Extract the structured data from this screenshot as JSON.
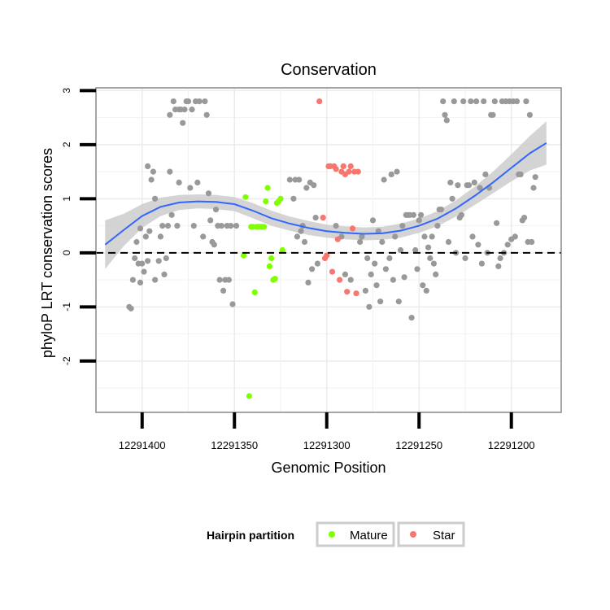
{
  "chart_data": {
    "type": "scatter",
    "title": "Conservation",
    "xlabel": "Genomic Position",
    "ylabel": "phyloP LRT conservation scores",
    "x_reversed": true,
    "xlim": [
      12291425,
      12291173
    ],
    "ylim": [
      -2.95,
      3.05
    ],
    "xticks": [
      12291400,
      12291350,
      12291300,
      12291250,
      12291200
    ],
    "xtick_labels": [
      "12291400",
      "12291350",
      "12291300",
      "12291250",
      "12291200"
    ],
    "yticks": [
      3,
      2,
      1,
      0,
      -1,
      -2
    ],
    "ytick_labels": [
      "3",
      "2",
      "1",
      "0",
      "-1",
      "-2"
    ],
    "reference_line": {
      "y": 0,
      "style": "dashed"
    },
    "grid": true,
    "legend": {
      "title": "Hairpin partition",
      "position": "bottom",
      "entries": [
        {
          "label": "Mature",
          "color": "#7fff00"
        },
        {
          "label": "Star",
          "color": "#f8766d"
        }
      ]
    },
    "colors": {
      "other": "#999999",
      "mature": "#7fff00",
      "star": "#f8766d",
      "smooth": "#3366ff",
      "band": "#cccccc",
      "panel_border": "#888888"
    },
    "series": [
      {
        "name": "other",
        "points": [
          [
            12291407,
            -1.0
          ],
          [
            12291406,
            -1.03
          ],
          [
            12291405,
            -0.5
          ],
          [
            12291404,
            -0.1
          ],
          [
            12291403,
            0.2
          ],
          [
            12291402,
            -0.2
          ],
          [
            12291401,
            -0.55
          ],
          [
            12291401,
            0.45
          ],
          [
            12291400,
            -0.2
          ],
          [
            12291399,
            -0.35
          ],
          [
            12291398,
            0.3
          ],
          [
            12291397,
            -0.15
          ],
          [
            12291397,
            1.6
          ],
          [
            12291396,
            0.4
          ],
          [
            12291395,
            1.35
          ],
          [
            12291394,
            1.5
          ],
          [
            12291393,
            -0.5
          ],
          [
            12291393,
            1.0
          ],
          [
            12291391,
            -0.15
          ],
          [
            12291390,
            0.3
          ],
          [
            12291389,
            0.5
          ],
          [
            12291388,
            -0.4
          ],
          [
            12291387,
            -0.1
          ],
          [
            12291386,
            0.5
          ],
          [
            12291385,
            1.5
          ],
          [
            12291385,
            2.55
          ],
          [
            12291384,
            0.7
          ],
          [
            12291383,
            2.8
          ],
          [
            12291382,
            2.65
          ],
          [
            12291381,
            0.5
          ],
          [
            12291380,
            2.65
          ],
          [
            12291380,
            1.3
          ],
          [
            12291379,
            2.65
          ],
          [
            12291378,
            2.4
          ],
          [
            12291377,
            2.65
          ],
          [
            12291376,
            2.8
          ],
          [
            12291375,
            2.8
          ],
          [
            12291374,
            1.2
          ],
          [
            12291373,
            2.65
          ],
          [
            12291372,
            0.5
          ],
          [
            12291371,
            2.8
          ],
          [
            12291370,
            1.3
          ],
          [
            12291369,
            2.8
          ],
          [
            12291367,
            0.3
          ],
          [
            12291366,
            2.8
          ],
          [
            12291365,
            2.55
          ],
          [
            12291364,
            1.1
          ],
          [
            12291363,
            0.6
          ],
          [
            12291362,
            0.2
          ],
          [
            12291361,
            0.15
          ],
          [
            12291360,
            0.8
          ],
          [
            12291359,
            0.5
          ],
          [
            12291358,
            -0.5
          ],
          [
            12291357,
            0.5
          ],
          [
            12291356,
            -0.7
          ],
          [
            12291355,
            -0.5
          ],
          [
            12291354,
            0.5
          ],
          [
            12291353,
            -0.5
          ],
          [
            12291352,
            0.5
          ],
          [
            12291351,
            -0.95
          ],
          [
            12291349,
            0.5
          ],
          [
            12291320,
            1.35
          ],
          [
            12291318,
            1.0
          ],
          [
            12291317,
            1.35
          ],
          [
            12291316,
            0.3
          ],
          [
            12291315,
            1.35
          ],
          [
            12291314,
            0.4
          ],
          [
            12291313,
            0.5
          ],
          [
            12291312,
            0.2
          ],
          [
            12291311,
            1.2
          ],
          [
            12291310,
            -0.55
          ],
          [
            12291309,
            1.3
          ],
          [
            12291308,
            -0.3
          ],
          [
            12291307,
            1.25
          ],
          [
            12291306,
            0.65
          ],
          [
            12291305,
            -0.2
          ],
          [
            12291295,
            0.5
          ],
          [
            12291292,
            0.3
          ],
          [
            12291290,
            -0.4
          ],
          [
            12291287,
            -0.5
          ],
          [
            12291282,
            0.2
          ],
          [
            12291281,
            0.3
          ],
          [
            12291279,
            -0.7
          ],
          [
            12291278,
            -0.1
          ],
          [
            12291277,
            -1.0
          ],
          [
            12291276,
            -0.4
          ],
          [
            12291275,
            0.6
          ],
          [
            12291274,
            -0.2
          ],
          [
            12291273,
            -0.6
          ],
          [
            12291272,
            0.4
          ],
          [
            12291271,
            -0.9
          ],
          [
            12291270,
            0.2
          ],
          [
            12291269,
            1.35
          ],
          [
            12291268,
            -0.3
          ],
          [
            12291266,
            -0.1
          ],
          [
            12291265,
            1.45
          ],
          [
            12291264,
            -0.5
          ],
          [
            12291263,
            0.3
          ],
          [
            12291262,
            1.5
          ],
          [
            12291261,
            -0.9
          ],
          [
            12291260,
            0.05
          ],
          [
            12291259,
            0.5
          ],
          [
            12291258,
            -0.45
          ],
          [
            12291257,
            0.7
          ],
          [
            12291256,
            0.7
          ],
          [
            12291255,
            0.7
          ],
          [
            12291254,
            -1.2
          ],
          [
            12291253,
            0.7
          ],
          [
            12291252,
            0.05
          ],
          [
            12291251,
            -0.3
          ],
          [
            12291250,
            0.6
          ],
          [
            12291249,
            0.7
          ],
          [
            12291248,
            -0.6
          ],
          [
            12291247,
            0.3
          ],
          [
            12291246,
            -0.7
          ],
          [
            12291245,
            0.1
          ],
          [
            12291244,
            -0.1
          ],
          [
            12291243,
            0.3
          ],
          [
            12291242,
            -0.2
          ],
          [
            12291241,
            -0.4
          ],
          [
            12291240,
            0.5
          ],
          [
            12291239,
            0.8
          ],
          [
            12291238,
            0.8
          ],
          [
            12291237,
            2.8
          ],
          [
            12291236,
            2.55
          ],
          [
            12291235,
            2.45
          ],
          [
            12291234,
            0.2
          ],
          [
            12291233,
            1.3
          ],
          [
            12291232,
            1.0
          ],
          [
            12291231,
            2.8
          ],
          [
            12291230,
            0.0
          ],
          [
            12291229,
            1.25
          ],
          [
            12291228,
            0.65
          ],
          [
            12291227,
            0.7
          ],
          [
            12291226,
            2.8
          ],
          [
            12291225,
            -0.1
          ],
          [
            12291224,
            1.25
          ],
          [
            12291223,
            1.25
          ],
          [
            12291222,
            2.8
          ],
          [
            12291221,
            0.3
          ],
          [
            12291220,
            1.3
          ],
          [
            12291219,
            2.8
          ],
          [
            12291218,
            0.15
          ],
          [
            12291217,
            1.2
          ],
          [
            12291216,
            -0.2
          ],
          [
            12291215,
            2.8
          ],
          [
            12291214,
            1.45
          ],
          [
            12291213,
            0.0
          ],
          [
            12291212,
            1.2
          ],
          [
            12291211,
            2.55
          ],
          [
            12291210,
            2.55
          ],
          [
            12291209,
            2.8
          ],
          [
            12291208,
            0.55
          ],
          [
            12291207,
            -0.25
          ],
          [
            12291206,
            -0.1
          ],
          [
            12291205,
            2.8
          ],
          [
            12291204,
            0.0
          ],
          [
            12291203,
            2.8
          ],
          [
            12291202,
            0.15
          ],
          [
            12291201,
            2.8
          ],
          [
            12291200,
            0.25
          ],
          [
            12291199,
            2.8
          ],
          [
            12291198,
            0.3
          ],
          [
            12291197,
            2.8
          ],
          [
            12291196,
            1.45
          ],
          [
            12291195,
            1.45
          ],
          [
            12291194,
            0.6
          ],
          [
            12291193,
            0.65
          ],
          [
            12291192,
            2.8
          ],
          [
            12291191,
            0.2
          ],
          [
            12291190,
            2.55
          ],
          [
            12291189,
            0.2
          ],
          [
            12291188,
            1.2
          ],
          [
            12291187,
            1.4
          ]
        ]
      },
      {
        "name": "Mature",
        "points": [
          [
            12291344,
            1.03
          ],
          [
            12291342,
            -2.65
          ],
          [
            12291341,
            0.48
          ],
          [
            12291340,
            0.48
          ],
          [
            12291339,
            -0.73
          ],
          [
            12291338,
            0.48
          ],
          [
            12291337,
            0.48
          ],
          [
            12291336,
            0.48
          ],
          [
            12291335,
            0.48
          ],
          [
            12291334,
            0.48
          ],
          [
            12291333,
            0.95
          ],
          [
            12291332,
            1.2
          ],
          [
            12291331,
            -0.25
          ],
          [
            12291330,
            -0.1
          ],
          [
            12291329,
            -0.5
          ],
          [
            12291328,
            -0.48
          ],
          [
            12291327,
            0.92
          ],
          [
            12291326,
            0.95
          ],
          [
            12291325,
            1.0
          ],
          [
            12291324,
            0.05
          ],
          [
            12291345,
            -0.05
          ]
        ]
      },
      {
        "name": "Star",
        "points": [
          [
            12291304,
            2.8
          ],
          [
            12291302,
            0.65
          ],
          [
            12291301,
            -0.1
          ],
          [
            12291300,
            -0.05
          ],
          [
            12291299,
            1.6
          ],
          [
            12291298,
            1.6
          ],
          [
            12291297,
            -0.35
          ],
          [
            12291296,
            1.6
          ],
          [
            12291295,
            1.55
          ],
          [
            12291294,
            0.25
          ],
          [
            12291293,
            -0.5
          ],
          [
            12291292,
            1.5
          ],
          [
            12291291,
            1.6
          ],
          [
            12291290,
            1.45
          ],
          [
            12291289,
            -0.72
          ],
          [
            12291288,
            1.5
          ],
          [
            12291287,
            1.6
          ],
          [
            12291286,
            0.45
          ],
          [
            12291285,
            1.5
          ],
          [
            12291284,
            -0.75
          ],
          [
            12291283,
            1.5
          ]
        ]
      },
      {
        "name": "smooth",
        "points": [
          [
            12291420,
            0.15
          ],
          [
            12291410,
            0.42
          ],
          [
            12291400,
            0.68
          ],
          [
            12291390,
            0.85
          ],
          [
            12291380,
            0.93
          ],
          [
            12291370,
            0.95
          ],
          [
            12291360,
            0.94
          ],
          [
            12291350,
            0.9
          ],
          [
            12291340,
            0.78
          ],
          [
            12291330,
            0.64
          ],
          [
            12291320,
            0.54
          ],
          [
            12291310,
            0.46
          ],
          [
            12291300,
            0.4
          ],
          [
            12291290,
            0.37
          ],
          [
            12291280,
            0.35
          ],
          [
            12291270,
            0.36
          ],
          [
            12291260,
            0.41
          ],
          [
            12291250,
            0.5
          ],
          [
            12291240,
            0.63
          ],
          [
            12291230,
            0.82
          ],
          [
            12291220,
            1.05
          ],
          [
            12291210,
            1.3
          ],
          [
            12291200,
            1.57
          ],
          [
            12291190,
            1.84
          ],
          [
            12291181,
            2.03
          ]
        ],
        "band_halfwidth": [
          0.45,
          0.3,
          0.22,
          0.17,
          0.14,
          0.13,
          0.13,
          0.13,
          0.14,
          0.14,
          0.13,
          0.13,
          0.12,
          0.12,
          0.12,
          0.12,
          0.13,
          0.13,
          0.14,
          0.15,
          0.17,
          0.2,
          0.25,
          0.32,
          0.4
        ]
      }
    ]
  }
}
